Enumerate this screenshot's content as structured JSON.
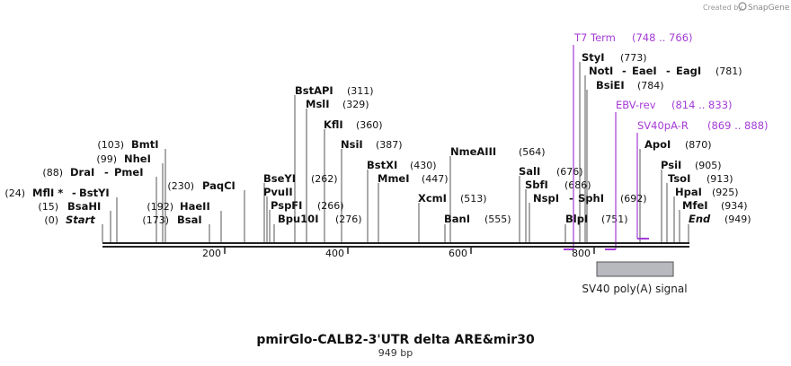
{
  "credit": "Created by",
  "brand": "SnapGene",
  "title": "pmirGlo-CALB2-3'UTR delta ARE&mir30",
  "length_label": "949 bp",
  "ticks": [
    "200",
    "400",
    "600",
    "800"
  ],
  "sites": [
    {
      "name": "Start",
      "pos": "(0)"
    },
    {
      "name": "BsaHI",
      "pos": "(15)"
    },
    {
      "name": "MflI *",
      "pos": "(24)",
      "linked": "BstYI"
    },
    {
      "name": "DraI",
      "pos": "(88)",
      "linked": "PmeI"
    },
    {
      "name": "NheI",
      "pos": "(99)"
    },
    {
      "name": "BmtI",
      "pos": "(103)"
    },
    {
      "name": "BsaI",
      "pos": "(173)"
    },
    {
      "name": "HaeII",
      "pos": "(192)"
    },
    {
      "name": "PaqCI",
      "pos": "(230)"
    },
    {
      "name": "BseYI",
      "pos": "(262)"
    },
    {
      "name": "PvuII",
      "pos": "(266)"
    },
    {
      "name": "PspFI",
      "pos": "(266)"
    },
    {
      "name": "Bpu10I",
      "pos": "(276)"
    },
    {
      "name": "BstAPI",
      "pos": "(311)"
    },
    {
      "name": "MslI",
      "pos": "(329)"
    },
    {
      "name": "KflI",
      "pos": "(360)"
    },
    {
      "name": "NsiI",
      "pos": "(387)"
    },
    {
      "name": "BstXI",
      "pos": "(430)"
    },
    {
      "name": "MmeI",
      "pos": "(447)"
    },
    {
      "name": "XcmI",
      "pos": "(513)"
    },
    {
      "name": "BanI",
      "pos": "(555)"
    },
    {
      "name": "NmeAIII",
      "pos": "(564)"
    },
    {
      "name": "SalI",
      "pos": "(676)"
    },
    {
      "name": "SbfI",
      "pos": "(686)"
    },
    {
      "name": "NspI",
      "pos": "(692)",
      "linked": "SphI"
    },
    {
      "name": "BlpI",
      "pos": "(751)"
    },
    {
      "name": "StyI",
      "pos": "(773)"
    },
    {
      "name": "NotI",
      "pos": "(781)",
      "linked": "EaeI",
      "linked2": "EagI"
    },
    {
      "name": "BsiEI",
      "pos": "(784)"
    },
    {
      "name": "ApoI",
      "pos": "(870)"
    },
    {
      "name": "PsiI",
      "pos": "(905)"
    },
    {
      "name": "TsoI",
      "pos": "(913)"
    },
    {
      "name": "HpaI",
      "pos": "(925)"
    },
    {
      "name": "MfeI",
      "pos": "(934)"
    },
    {
      "name": "End",
      "pos": "(949)"
    }
  ],
  "features": [
    {
      "name": "T7 Term",
      "range": "(748 .. 766)"
    },
    {
      "name": "EBV-rev",
      "range": "(814 .. 833)"
    },
    {
      "name": "SV40pA-R",
      "range": "(869 .. 888)"
    }
  ],
  "feature_box": {
    "label": "SV40 poly(A) signal"
  },
  "colors": {
    "primer": "#a43bd6",
    "box_fill": "#b8b9be",
    "box_stroke": "#555555"
  }
}
